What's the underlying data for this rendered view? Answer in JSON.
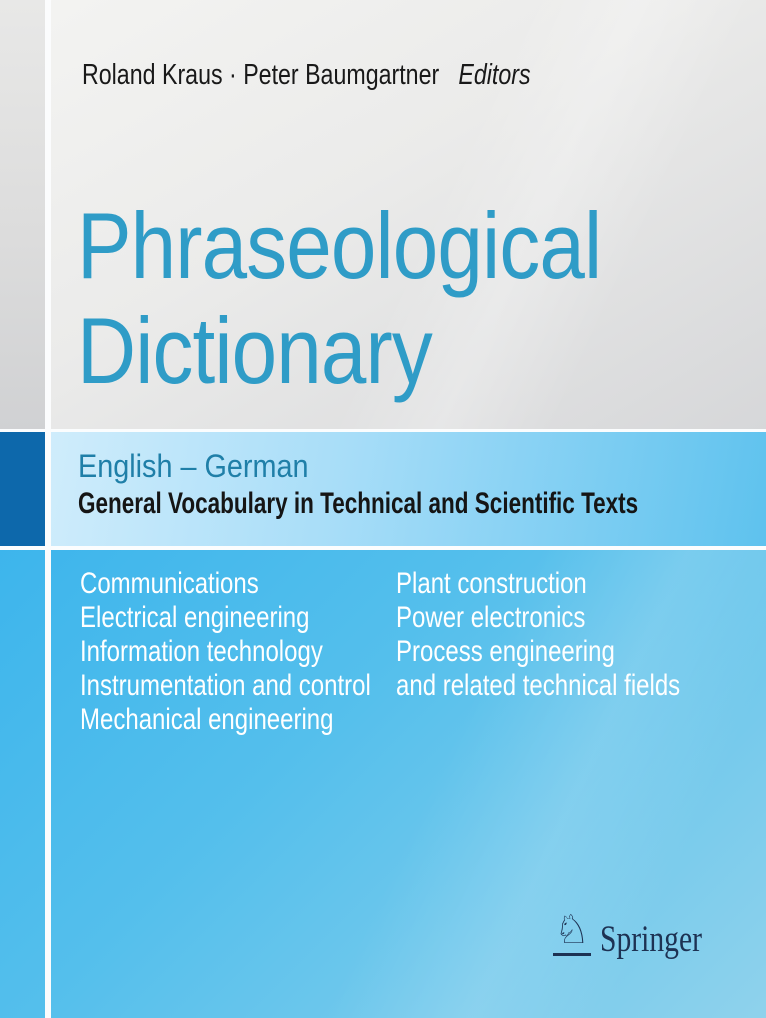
{
  "cover": {
    "authors_line": {
      "names": "Roland Kraus · Peter Baumgartner",
      "role": "Editors"
    },
    "title": {
      "line1": "Phraseological",
      "line2": "Dictionary"
    },
    "subtitle_band": {
      "languages": "English – German",
      "subtitle": "General Vocabulary in Technical and Scientific Texts"
    },
    "subjects": {
      "left_column": [
        "Communications",
        "Electrical engineering",
        "Information technology",
        "Instrumentation and control",
        "Mechanical engineering"
      ],
      "right_column": [
        "Plant construction",
        "Power electronics",
        "Process engineering",
        "and related technical fields"
      ]
    },
    "publisher": {
      "name": "Springer",
      "logo_icon": "knight-chess-icon",
      "logo_glyph": "♘"
    },
    "colors": {
      "title_blue": "#2f9cc7",
      "languages_teal": "#1f7fa8",
      "accent_dark_blue_square": "#0d68ab",
      "band_light_blue": "#a7ddf8",
      "cyan_section_top": "#3db5ec",
      "cyan_section_bottom": "#8fd2ec",
      "publisher_navy": "#1d3253"
    }
  }
}
